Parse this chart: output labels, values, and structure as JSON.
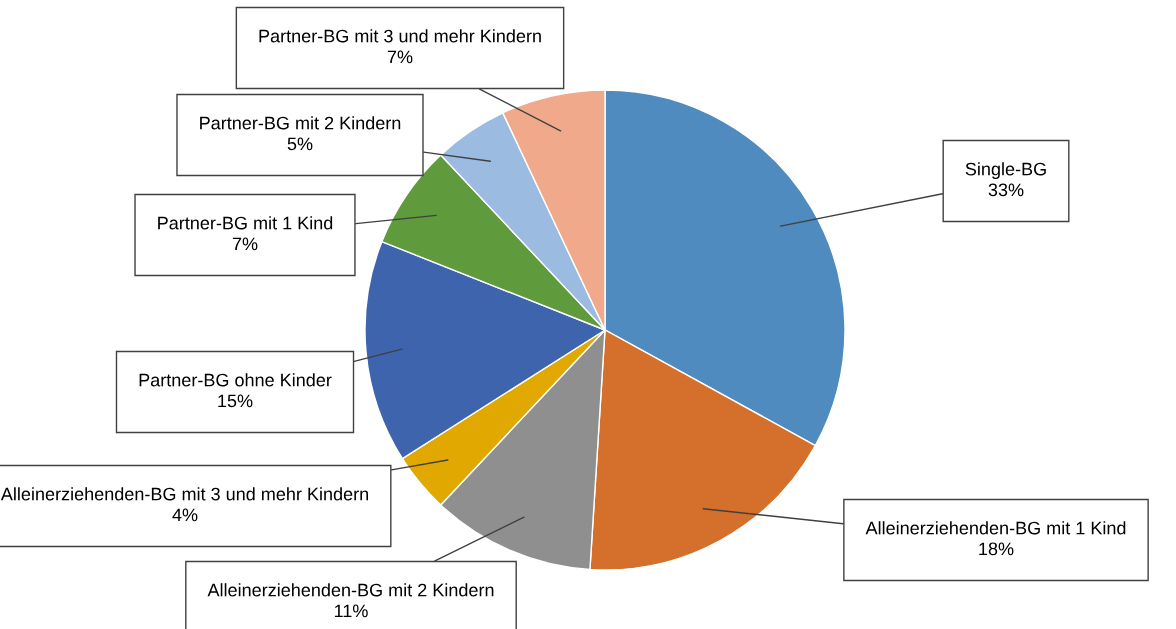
{
  "chart_data": {
    "type": "pie",
    "categories": [
      "Single-BG",
      "Alleinerziehenden-BG mit 1 Kind",
      "Alleinerziehenden-BG mit 2 Kindern",
      "Alleinerziehenden-BG mit 3 und mehr Kindern",
      "Partner-BG ohne Kinder",
      "Partner-BG mit 1 Kind",
      "Partner-BG mit 2 Kindern",
      "Partner-BG mit 3 und mehr Kindern"
    ],
    "values": [
      33,
      18,
      11,
      4,
      15,
      7,
      5,
      7
    ],
    "value_labels": [
      "33%",
      "18%",
      "11%",
      "4%",
      "15%",
      "7%",
      "5%",
      "7%"
    ],
    "colors": [
      "#4f8bbf",
      "#d4702b",
      "#8f8f8f",
      "#e0a800",
      "#3d64ad",
      "#5f9a3c",
      "#9bbbe0",
      "#f0a98a"
    ],
    "legend": false
  }
}
